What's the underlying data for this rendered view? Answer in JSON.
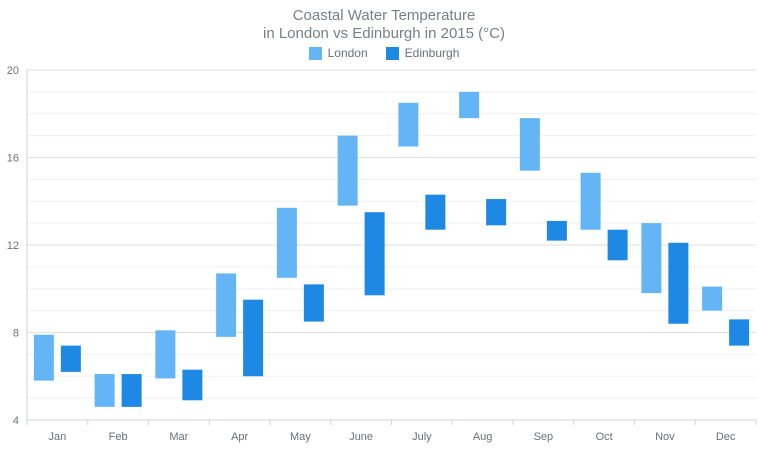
{
  "chart_data": {
    "type": "bar",
    "subtype": "range-column",
    "title": "Coastal Water Temperature",
    "subtitle": "in London vs Edinburgh in 2015 (°C)",
    "categories": [
      "Jan",
      "Feb",
      "Mar",
      "Apr",
      "May",
      "June",
      "July",
      "Aug",
      "Sep",
      "Oct",
      "Nov",
      "Dec"
    ],
    "ylim": [
      4,
      20
    ],
    "yticks": [
      4,
      8,
      12,
      16,
      20
    ],
    "grid": true,
    "legend_position": "top-center",
    "series": [
      {
        "name": "London",
        "color": "#64b5f6",
        "low": [
          5.8,
          4.6,
          5.9,
          7.8,
          10.5,
          13.8,
          16.5,
          17.8,
          15.4,
          12.7,
          9.8,
          9.0
        ],
        "high": [
          7.9,
          6.1,
          8.1,
          10.7,
          13.7,
          17.0,
          18.5,
          19.0,
          17.8,
          15.3,
          13.0,
          10.1
        ]
      },
      {
        "name": "Edinburgh",
        "color": "#1e88e5",
        "low": [
          6.2,
          4.6,
          4.9,
          6.0,
          8.5,
          9.7,
          12.7,
          12.9,
          12.2,
          11.3,
          8.4,
          7.4
        ],
        "high": [
          7.4,
          6.1,
          6.3,
          9.5,
          10.2,
          13.5,
          14.3,
          14.1,
          13.1,
          12.7,
          12.1,
          8.6
        ]
      }
    ]
  }
}
